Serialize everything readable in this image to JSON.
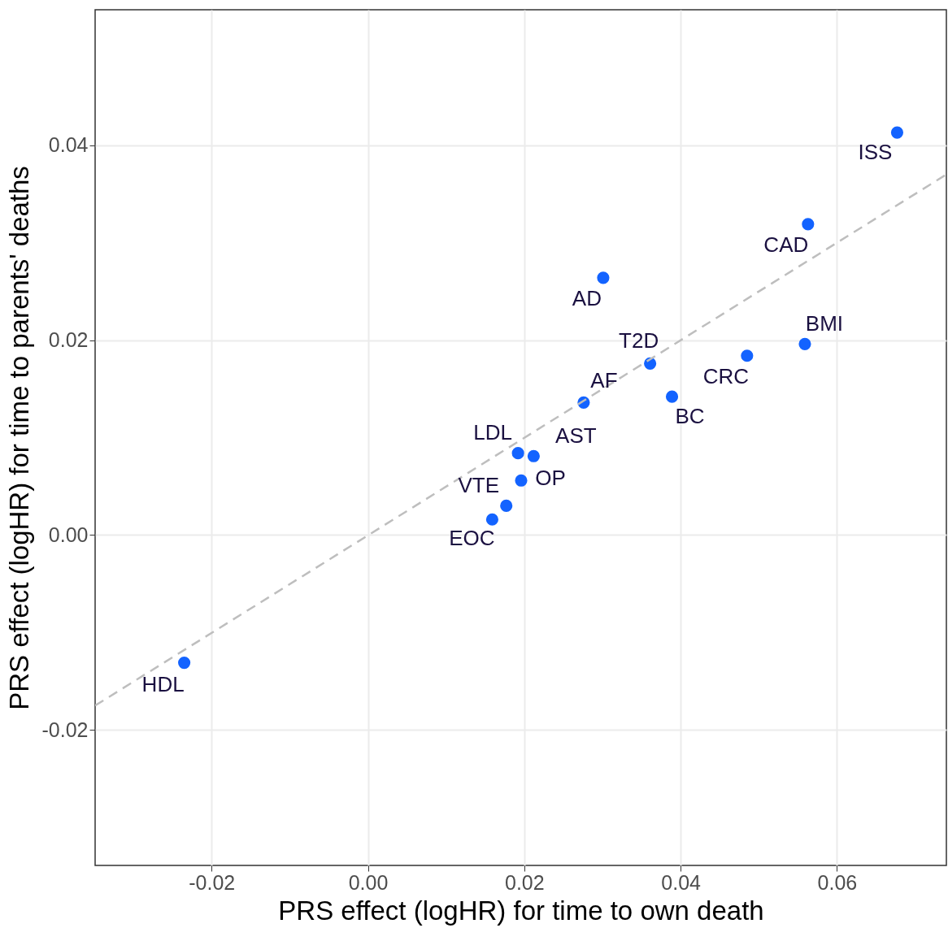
{
  "chart_data": {
    "type": "scatter",
    "xlabel": "PRS effect (logHR) for time to own death",
    "ylabel": "PRS effect (logHR) for time to parents' deaths",
    "xlim": [
      -0.0349,
      0.074
    ],
    "ylim": [
      -0.0339,
      0.0539
    ],
    "xticks": [
      {
        "value": -0.02,
        "label": "-0.02"
      },
      {
        "value": 0,
        "label": "0.00"
      },
      {
        "value": 0.02,
        "label": "0.02"
      },
      {
        "value": 0.04,
        "label": "0.04"
      },
      {
        "value": 0.06,
        "label": "0.06"
      }
    ],
    "yticks": [
      {
        "value": -0.02,
        "label": "-0.02"
      },
      {
        "value": 0,
        "label": "0.00"
      },
      {
        "value": 0.02,
        "label": "0.02"
      },
      {
        "value": 0.04,
        "label": "0.04"
      }
    ],
    "grid": true,
    "series": [
      {
        "color": "#1363ff",
        "marker": "circle",
        "x": [
          0.0677,
          0.0563,
          0.0301,
          0.0559,
          0.0485,
          0.0361,
          0.0389,
          0.0276,
          0.0192,
          0.0212,
          0.0196,
          0.0177,
          0.0159,
          -0.0235
        ],
        "values": [
          0.0413,
          0.0319,
          0.0264,
          0.0196,
          0.0184,
          0.0176,
          0.0142,
          0.0136,
          0.0084,
          0.0081,
          0.0056,
          0.003,
          0.0016,
          -0.0131
        ]
      },
      {
        "type": "line",
        "color": "#bebebe",
        "line_style": "dashed",
        "marker": "none",
        "x": [
          -0.0349,
          0.074
        ],
        "values": [
          -0.0175,
          0.037
        ]
      }
    ],
    "annotations": [
      {
        "text": "ISS",
        "x": 0.0677,
        "y": 0.0413
      },
      {
        "text": "CAD",
        "x": 0.0563,
        "y": 0.0319
      },
      {
        "text": "AD",
        "x": 0.0301,
        "y": 0.0264
      },
      {
        "text": "BMI",
        "x": 0.0559,
        "y": 0.0196
      },
      {
        "text": "CRC",
        "x": 0.0485,
        "y": 0.0184
      },
      {
        "text": "T2D",
        "x": 0.0361,
        "y": 0.0176
      },
      {
        "text": "BC",
        "x": 0.0389,
        "y": 0.0142
      },
      {
        "text": "AF",
        "x": 0.0276,
        "y": 0.0136
      },
      {
        "text": "LDL",
        "x": 0.0192,
        "y": 0.0084
      },
      {
        "text": "AST",
        "x": 0.0212,
        "y": 0.0081
      },
      {
        "text": "OP",
        "x": 0.0196,
        "y": 0.0056
      },
      {
        "text": "VTE",
        "x": 0.0177,
        "y": 0.003
      },
      {
        "text": "EOC",
        "x": 0.0159,
        "y": 0.0016
      },
      {
        "text": "HDL",
        "x": -0.0235,
        "y": -0.0131
      }
    ]
  }
}
